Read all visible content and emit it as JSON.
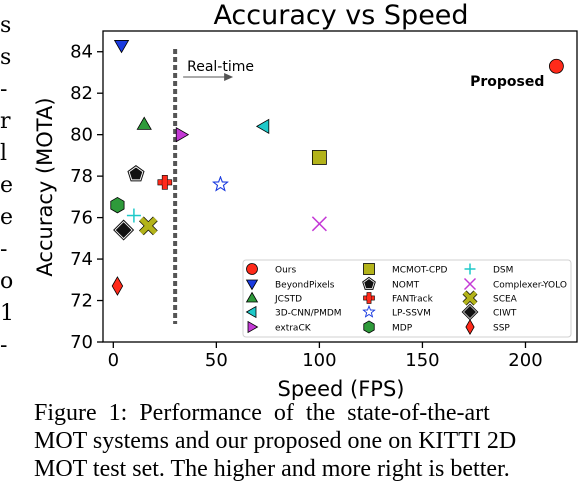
{
  "chart_data": {
    "type": "scatter",
    "title": "Accuracy vs Speed",
    "xlabel": "Speed (FPS)",
    "ylabel": "Accuracy (MOTA)",
    "xlim": [
      -5,
      225
    ],
    "ylim": [
      70,
      85
    ],
    "xticks": [
      0,
      50,
      100,
      150,
      200
    ],
    "yticks": [
      70,
      72,
      74,
      76,
      78,
      80,
      82,
      84
    ],
    "realtime_line_x": 30,
    "realtime_label": "Real-time",
    "proposed_label": "Proposed",
    "legend_position": "lower-right",
    "series": [
      {
        "name": "Ours",
        "x": 215,
        "y": 83.3,
        "marker": "circle",
        "color": "#ff2a1a"
      },
      {
        "name": "BeyondPixels",
        "x": 4,
        "y": 84.3,
        "marker": "triangle-down",
        "color": "#1a3be0"
      },
      {
        "name": "JCSTD",
        "x": 15,
        "y": 80.5,
        "marker": "triangle-up",
        "color": "#2e9a3a"
      },
      {
        "name": "3D-CNN/PMDM",
        "x": 73,
        "y": 80.4,
        "marker": "triangle-left",
        "color": "#1ec9c9"
      },
      {
        "name": "extraCK",
        "x": 33,
        "y": 80.0,
        "marker": "triangle-right",
        "color": "#c439d6"
      },
      {
        "name": "MCMOT-CPD",
        "x": 100,
        "y": 78.9,
        "marker": "square",
        "color": "#b3b31a"
      },
      {
        "name": "NOMT",
        "x": 11,
        "y": 78.1,
        "marker": "pentagon",
        "color": "#111111"
      },
      {
        "name": "FANTrack",
        "x": 25,
        "y": 77.7,
        "marker": "plus-thick",
        "color": "#ff2a1a"
      },
      {
        "name": "LP-SSVM",
        "x": 52,
        "y": 77.6,
        "marker": "star",
        "color": "#1a3be0"
      },
      {
        "name": "MDP",
        "x": 2,
        "y": 76.6,
        "marker": "hexagon",
        "color": "#2e9a3a"
      },
      {
        "name": "DSM",
        "x": 10,
        "y": 76.1,
        "marker": "plus-thin",
        "color": "#1ec9c9"
      },
      {
        "name": "Complexer-YOLO",
        "x": 100,
        "y": 75.7,
        "marker": "x-thin",
        "color": "#c439d6"
      },
      {
        "name": "SCEA",
        "x": 17,
        "y": 75.6,
        "marker": "x-thick",
        "color": "#b3b31a"
      },
      {
        "name": "CIWT",
        "x": 5,
        "y": 75.4,
        "marker": "diamond",
        "color": "#111111"
      },
      {
        "name": "SSP",
        "x": 2,
        "y": 72.7,
        "marker": "thin-diamond",
        "color": "#ff2a1a"
      }
    ]
  },
  "margin_chars": [
    "s",
    "s",
    "-",
    "r",
    "l",
    "e",
    "e",
    "-",
    "o",
    "1",
    "-"
  ],
  "caption": {
    "line1": "Figure 1:  Performance of the state-of-the-art",
    "line2": "MOT systems and our proposed one on KITTI 2D",
    "line3": "MOT test set. The higher and more right is better."
  }
}
